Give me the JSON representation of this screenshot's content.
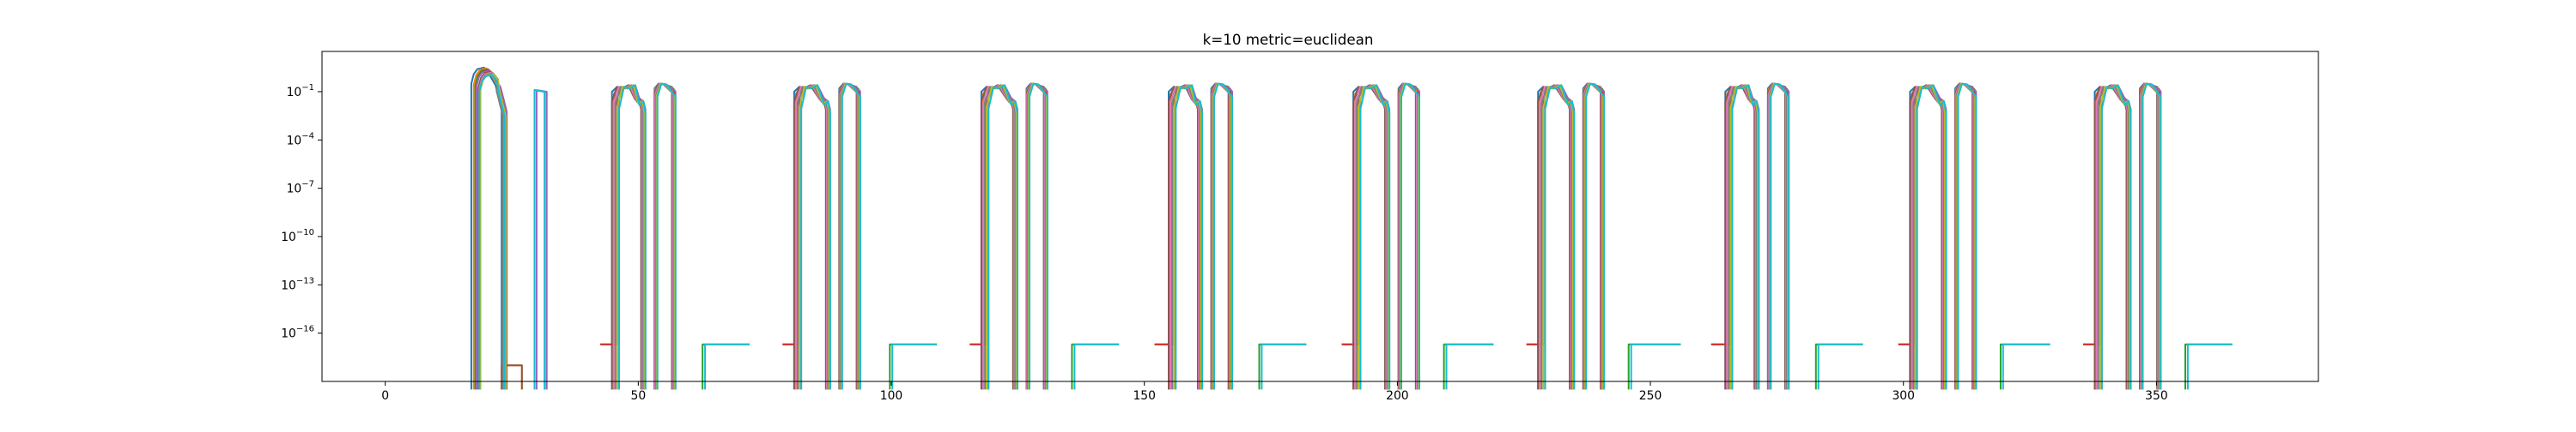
{
  "chart_data": {
    "type": "line",
    "title": "k=10 metric=euclidean",
    "xlabel": "",
    "ylabel": "",
    "xlim": [
      -12.5,
      382
    ],
    "ylim_exp": [
      -19,
      1.5
    ],
    "yscale": "log",
    "grid": false,
    "legend": "none",
    "x_ticks": [
      {
        "value": 0,
        "label": "0"
      },
      {
        "value": 50,
        "label": "50"
      },
      {
        "value": 100,
        "label": "100"
      },
      {
        "value": 150,
        "label": "150"
      },
      {
        "value": 200,
        "label": "200"
      },
      {
        "value": 250,
        "label": "250"
      },
      {
        "value": 300,
        "label": "300"
      },
      {
        "value": 350,
        "label": "350"
      }
    ],
    "y_ticks": [
      {
        "exp": -1,
        "label": "10",
        "sup": "−1"
      },
      {
        "exp": -4,
        "label": "10",
        "sup": "−4"
      },
      {
        "exp": -7,
        "label": "10",
        "sup": "−7"
      },
      {
        "exp": -10,
        "label": "10",
        "sup": "−10"
      },
      {
        "exp": -13,
        "label": "10",
        "sup": "−13"
      },
      {
        "exp": -16,
        "label": "10",
        "sup": "−16"
      }
    ],
    "series_colors": [
      "#1f77b4",
      "#ff7f0e",
      "#2ca02c",
      "#d62728",
      "#9467bd",
      "#8c564b",
      "#e377c2",
      "#7f7f7f",
      "#bcbd22",
      "#17becf"
    ],
    "floor_exp": -16.7,
    "first_block": {
      "rise": [
        17,
        17.5,
        17.8,
        18,
        18,
        18.4,
        18.6,
        18.8,
        18.8,
        18.6
      ],
      "fall": [
        23,
        23.5,
        23.8,
        24,
        24,
        23.6,
        23.3,
        23.2,
        23.8,
        23.6
      ],
      "peak_exp": 0.4,
      "step_floor_x": [
        23,
        27
      ],
      "step_floor_exp": -18
    },
    "second_block": {
      "x_start": 29.5,
      "x_end": 31.5,
      "top_exp": -0.9
    },
    "blocks": [
      {
        "flat_start": 42.5,
        "rise_a": 45.5,
        "fall_a": 51,
        "rise_b": 53.5,
        "fall_b": 57,
        "tail_start": 63,
        "tail_end": 72
      },
      {
        "flat_start": 78.5,
        "rise_a": 81.5,
        "fall_a": 87.5,
        "rise_b": 90,
        "fall_b": 93.5,
        "tail_start": 100,
        "tail_end": 109
      },
      {
        "flat_start": 115.5,
        "rise_a": 118.5,
        "fall_a": 124.5,
        "rise_b": 127,
        "fall_b": 130.5,
        "tail_start": 136,
        "tail_end": 145
      },
      {
        "flat_start": 152,
        "rise_a": 155.5,
        "fall_a": 161,
        "rise_b": 163.5,
        "fall_b": 167,
        "tail_start": 173,
        "tail_end": 182
      },
      {
        "flat_start": 189,
        "rise_a": 192,
        "fall_a": 198,
        "rise_b": 200.5,
        "fall_b": 204,
        "tail_start": 209.5,
        "tail_end": 219
      },
      {
        "flat_start": 225.5,
        "rise_a": 228.5,
        "fall_a": 234.5,
        "rise_b": 237,
        "fall_b": 240.5,
        "tail_start": 246,
        "tail_end": 256
      },
      {
        "flat_start": 262,
        "rise_a": 265.5,
        "fall_a": 271,
        "rise_b": 273.5,
        "fall_b": 277,
        "tail_start": 283,
        "tail_end": 292
      },
      {
        "flat_start": 299,
        "rise_a": 302,
        "fall_a": 308,
        "rise_b": 310.5,
        "fall_b": 314,
        "tail_start": 319.5,
        "tail_end": 329
      },
      {
        "flat_start": 335.5,
        "rise_a": 338.5,
        "fall_a": 344.5,
        "rise_b": 347,
        "fall_b": 350.5,
        "tail_start": 356,
        "tail_end": 365
      }
    ]
  }
}
